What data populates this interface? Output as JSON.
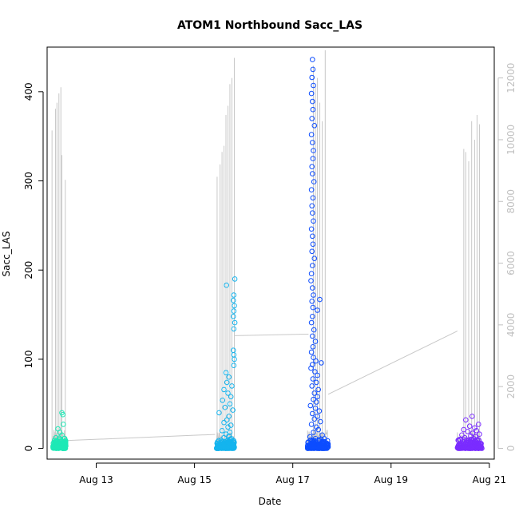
{
  "chart_data": {
    "type": "scatter",
    "title": "ATOM1 Northbound Sacc_LAS",
    "xlabel": "Date",
    "ylabel": "Sacc_LAS",
    "x_ticks": [
      "Aug 13",
      "Aug 15",
      "Aug 17",
      "Aug 19",
      "Aug 21"
    ],
    "x_tick_days": [
      13,
      15,
      17,
      19,
      21
    ],
    "xlim": [
      12.0,
      21.1
    ],
    "y_ticks": [
      0,
      100,
      200,
      300,
      400
    ],
    "ylim": [
      -12,
      450
    ],
    "y2_ticks": [
      0,
      2000,
      4000,
      6000,
      8000,
      10000,
      12000
    ],
    "y2lim": [
      -350,
      13000
    ],
    "colors": {
      "axis": "#000000",
      "secondary_axis": "#c0c0c0",
      "line": "#c8c8c8"
    },
    "series": [
      {
        "day_range": [
          12.12,
          12.38
        ],
        "color": "#1de9b6",
        "points": [
          [
            12.3,
            40
          ],
          [
            12.32,
            38
          ],
          [
            12.33,
            27
          ],
          [
            12.22,
            22
          ],
          [
            12.26,
            18
          ],
          [
            12.3,
            15
          ],
          [
            12.18,
            12
          ],
          [
            12.25,
            10
          ],
          [
            12.35,
            11
          ],
          [
            12.15,
            9
          ],
          [
            12.28,
            8
          ]
        ]
      },
      {
        "day_range": [
          15.45,
          15.82
        ],
        "color": "#14b4ee",
        "points": [
          [
            15.65,
            183
          ],
          [
            15.82,
            190
          ],
          [
            15.8,
            172
          ],
          [
            15.79,
            166
          ],
          [
            15.81,
            160
          ],
          [
            15.8,
            154
          ],
          [
            15.79,
            148
          ],
          [
            15.82,
            141
          ],
          [
            15.8,
            134
          ],
          [
            15.79,
            110
          ],
          [
            15.8,
            105
          ],
          [
            15.81,
            100
          ],
          [
            15.8,
            93
          ],
          [
            15.64,
            85
          ],
          [
            15.7,
            80
          ],
          [
            15.66,
            74
          ],
          [
            15.76,
            70
          ],
          [
            15.6,
            66
          ],
          [
            15.68,
            62
          ],
          [
            15.74,
            58
          ],
          [
            15.57,
            54
          ],
          [
            15.72,
            50
          ],
          [
            15.62,
            46
          ],
          [
            15.78,
            43
          ],
          [
            15.5,
            40
          ],
          [
            15.7,
            36
          ],
          [
            15.66,
            32
          ],
          [
            15.6,
            29
          ],
          [
            15.74,
            26
          ],
          [
            15.68,
            24
          ],
          [
            15.56,
            20
          ],
          [
            15.72,
            18
          ],
          [
            15.64,
            16
          ],
          [
            15.7,
            14
          ],
          [
            15.6,
            12
          ],
          [
            15.75,
            11
          ]
        ]
      },
      {
        "day_range": [
          17.3,
          17.72
        ],
        "color": "#0d4dff",
        "points": [
          [
            17.4,
            436
          ],
          [
            17.41,
            425
          ],
          [
            17.39,
            416
          ],
          [
            17.42,
            407
          ],
          [
            17.38,
            398
          ],
          [
            17.4,
            389
          ],
          [
            17.41,
            380
          ],
          [
            17.39,
            370
          ],
          [
            17.44,
            362
          ],
          [
            17.38,
            352
          ],
          [
            17.4,
            343
          ],
          [
            17.42,
            334
          ],
          [
            17.41,
            325
          ],
          [
            17.39,
            316
          ],
          [
            17.4,
            308
          ],
          [
            17.43,
            299
          ],
          [
            17.38,
            290
          ],
          [
            17.41,
            281
          ],
          [
            17.39,
            272
          ],
          [
            17.4,
            264
          ],
          [
            17.42,
            255
          ],
          [
            17.38,
            246
          ],
          [
            17.4,
            238
          ],
          [
            17.41,
            229
          ],
          [
            17.39,
            221
          ],
          [
            17.44,
            213
          ],
          [
            17.4,
            205
          ],
          [
            17.38,
            196
          ],
          [
            17.37,
            188
          ],
          [
            17.4,
            180
          ],
          [
            17.42,
            172
          ],
          [
            17.39,
            165
          ],
          [
            17.41,
            158
          ],
          [
            17.5,
            155
          ],
          [
            17.4,
            148
          ],
          [
            17.38,
            141
          ],
          [
            17.43,
            133
          ],
          [
            17.4,
            126
          ],
          [
            17.46,
            120
          ],
          [
            17.41,
            114
          ],
          [
            17.38,
            108
          ],
          [
            17.42,
            102
          ],
          [
            17.47,
            98
          ],
          [
            17.4,
            94
          ],
          [
            17.37,
            90
          ],
          [
            17.45,
            86
          ],
          [
            17.5,
            82
          ],
          [
            17.41,
            78
          ],
          [
            17.48,
            74
          ],
          [
            17.39,
            70
          ],
          [
            17.52,
            66
          ],
          [
            17.58,
            96
          ],
          [
            17.55,
            167
          ],
          [
            17.44,
            62
          ],
          [
            17.5,
            58
          ],
          [
            17.42,
            55
          ],
          [
            17.48,
            52
          ],
          [
            17.36,
            48
          ],
          [
            17.46,
            45
          ],
          [
            17.54,
            42
          ],
          [
            17.4,
            39
          ],
          [
            17.5,
            36
          ],
          [
            17.44,
            33
          ],
          [
            17.56,
            30
          ],
          [
            17.38,
            27
          ],
          [
            17.48,
            24
          ],
          [
            17.52,
            21
          ],
          [
            17.42,
            18
          ],
          [
            17.6,
            15
          ],
          [
            17.35,
            13
          ],
          [
            17.46,
            11
          ],
          [
            17.58,
            10
          ]
        ]
      },
      {
        "day_range": [
          20.35,
          20.85
        ],
        "color": "#7a2cff",
        "points": [
          [
            20.65,
            36
          ],
          [
            20.52,
            32
          ],
          [
            20.78,
            27
          ],
          [
            20.6,
            25
          ],
          [
            20.7,
            23
          ],
          [
            20.48,
            21
          ],
          [
            20.74,
            20
          ],
          [
            20.56,
            19
          ],
          [
            20.66,
            17
          ],
          [
            20.8,
            16
          ],
          [
            20.44,
            15
          ],
          [
            20.62,
            14
          ],
          [
            20.72,
            13
          ],
          [
            20.5,
            12
          ],
          [
            20.68,
            11
          ],
          [
            20.76,
            10
          ],
          [
            20.58,
            9
          ]
        ]
      }
    ],
    "line_spikes": [
      {
        "day": 12.1,
        "value": 10300
      },
      {
        "day": 12.17,
        "value": 11000
      },
      {
        "day": 12.2,
        "value": 11200
      },
      {
        "day": 12.24,
        "value": 11500
      },
      {
        "day": 12.28,
        "value": 11700
      },
      {
        "day": 12.3,
        "value": 9500
      },
      {
        "day": 12.37,
        "value": 8700
      },
      {
        "day": 15.46,
        "value": 8800
      },
      {
        "day": 15.52,
        "value": 9200
      },
      {
        "day": 15.56,
        "value": 9600
      },
      {
        "day": 15.6,
        "value": 9800
      },
      {
        "day": 15.64,
        "value": 10800
      },
      {
        "day": 15.68,
        "value": 11100
      },
      {
        "day": 15.72,
        "value": 11800
      },
      {
        "day": 15.76,
        "value": 12000
      },
      {
        "day": 15.81,
        "value": 12650
      },
      {
        "day": 17.42,
        "value": 12400
      },
      {
        "day": 17.46,
        "value": 11700
      },
      {
        "day": 17.5,
        "value": 12000
      },
      {
        "day": 17.55,
        "value": 11200
      },
      {
        "day": 17.6,
        "value": 10600
      },
      {
        "day": 17.66,
        "value": 12900
      },
      {
        "day": 20.48,
        "value": 9700
      },
      {
        "day": 20.52,
        "value": 9600
      },
      {
        "day": 20.58,
        "value": 9300
      },
      {
        "day": 20.64,
        "value": 10600
      },
      {
        "day": 20.7,
        "value": 10000
      },
      {
        "day": 20.75,
        "value": 10800
      },
      {
        "day": 20.8,
        "value": 10500
      }
    ],
    "line_bridges": [
      {
        "from_day": 12.38,
        "from_value": 250,
        "to_day": 15.42,
        "to_value": 450
      },
      {
        "from_day": 15.82,
        "from_value": 3650,
        "to_day": 17.32,
        "to_value": 3700
      },
      {
        "from_day": 17.72,
        "from_value": 1750,
        "to_day": 20.35,
        "to_value": 3800
      }
    ]
  }
}
